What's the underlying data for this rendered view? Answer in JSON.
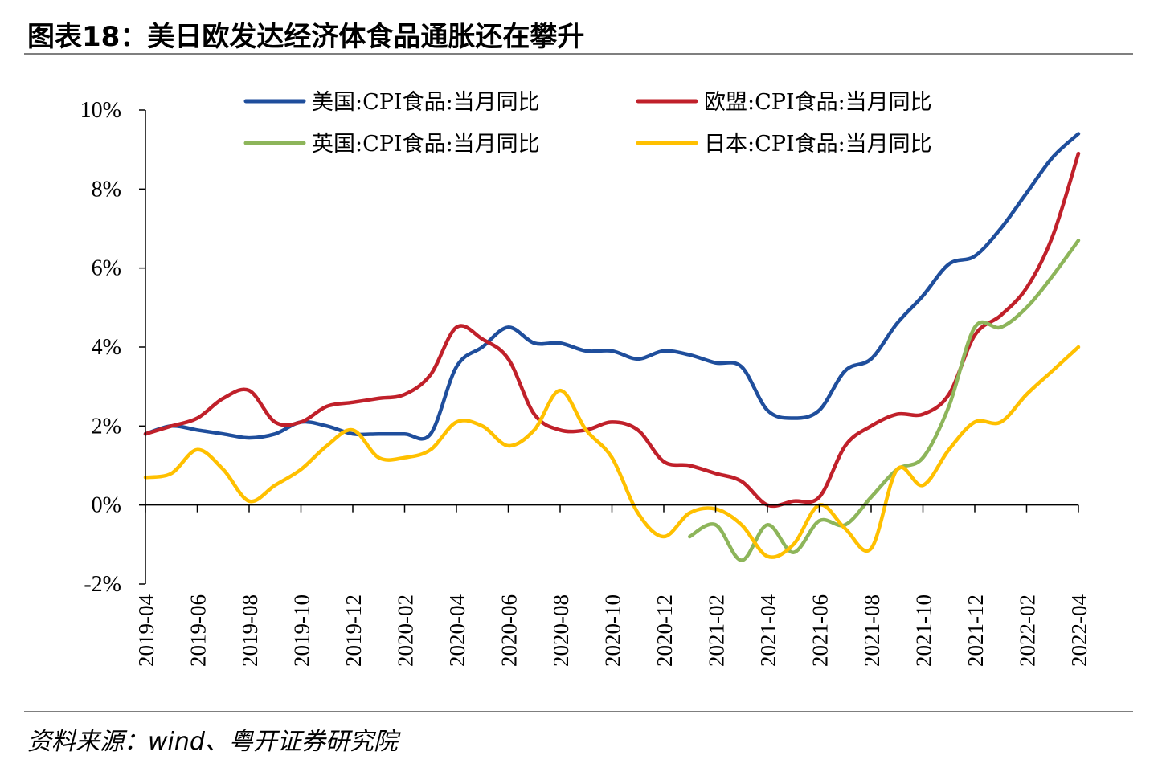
{
  "title": "图表18：美日欧发达经济体食品通胀还在攀升",
  "source": "资料来源：wind、粤开证券研究院",
  "chart_data": {
    "type": "line",
    "title": "",
    "xlabel": "",
    "ylabel": "",
    "y_unit": "%",
    "ylim": [
      -2,
      10
    ],
    "yticks": [
      -2,
      0,
      2,
      4,
      6,
      8,
      10
    ],
    "ytick_labels": [
      "-2%",
      "0%",
      "2%",
      "4%",
      "6%",
      "8%",
      "10%"
    ],
    "x": [
      "2019-04",
      "2019-05",
      "2019-06",
      "2019-07",
      "2019-08",
      "2019-09",
      "2019-10",
      "2019-11",
      "2019-12",
      "2020-01",
      "2020-02",
      "2020-03",
      "2020-04",
      "2020-05",
      "2020-06",
      "2020-07",
      "2020-08",
      "2020-09",
      "2020-10",
      "2020-11",
      "2020-12",
      "2021-01",
      "2021-02",
      "2021-03",
      "2021-04",
      "2021-05",
      "2021-06",
      "2021-07",
      "2021-08",
      "2021-09",
      "2021-10",
      "2021-11",
      "2021-12",
      "2022-01",
      "2022-02",
      "2022-03",
      "2022-04"
    ],
    "x_tick_labels": [
      "2019-04",
      "2019-06",
      "2019-08",
      "2019-10",
      "2019-12",
      "2020-02",
      "2020-04",
      "2020-06",
      "2020-08",
      "2020-10",
      "2020-12",
      "2021-02",
      "2021-04",
      "2021-06",
      "2021-08",
      "2021-10",
      "2021-12",
      "2022-02",
      "2022-04"
    ],
    "legend": {
      "position": "top",
      "columns": 2
    },
    "grid": false,
    "series": [
      {
        "name": "美国:CPI食品:当月同比",
        "color": "#1f4e9c",
        "values": [
          1.8,
          2.0,
          1.9,
          1.8,
          1.7,
          1.8,
          2.1,
          2.0,
          1.8,
          1.8,
          1.8,
          1.8,
          3.5,
          4.0,
          4.5,
          4.1,
          4.1,
          3.9,
          3.9,
          3.7,
          3.9,
          3.8,
          3.6,
          3.5,
          2.4,
          2.2,
          2.4,
          3.4,
          3.7,
          4.6,
          5.3,
          6.1,
          6.3,
          7.0,
          7.9,
          8.8,
          9.4
        ]
      },
      {
        "name": "欧盟:CPI食品:当月同比",
        "color": "#c0202a",
        "values": [
          1.8,
          2.0,
          2.2,
          2.7,
          2.9,
          2.1,
          2.1,
          2.5,
          2.6,
          2.7,
          2.8,
          3.3,
          4.5,
          4.2,
          3.7,
          2.3,
          1.9,
          1.9,
          2.1,
          1.9,
          1.1,
          1.0,
          0.8,
          0.6,
          0.0,
          0.1,
          0.2,
          1.5,
          2.0,
          2.3,
          2.3,
          2.8,
          4.3,
          4.8,
          5.5,
          6.8,
          8.9
        ]
      },
      {
        "name": "英国:CPI食品:当月同比",
        "color": "#8db55a",
        "values": [
          null,
          null,
          null,
          null,
          null,
          null,
          null,
          null,
          null,
          null,
          null,
          null,
          null,
          null,
          null,
          null,
          null,
          null,
          null,
          null,
          null,
          -0.8,
          -0.5,
          -1.4,
          -0.5,
          -1.2,
          -0.4,
          -0.5,
          0.2,
          0.9,
          1.2,
          2.5,
          4.5,
          4.5,
          5.0,
          5.8,
          6.7
        ]
      },
      {
        "name": "日本:CPI食品:当月同比",
        "color": "#ffc000",
        "values": [
          0.7,
          0.8,
          1.4,
          0.9,
          0.1,
          0.5,
          0.9,
          1.5,
          1.9,
          1.2,
          1.2,
          1.4,
          2.1,
          2.0,
          1.5,
          1.9,
          2.9,
          1.9,
          1.2,
          -0.2,
          -0.8,
          -0.2,
          -0.1,
          -0.5,
          -1.3,
          -1.0,
          0.0,
          -0.6,
          -1.1,
          0.9,
          0.5,
          1.4,
          2.1,
          2.1,
          2.8,
          3.4,
          4.0
        ]
      }
    ]
  }
}
